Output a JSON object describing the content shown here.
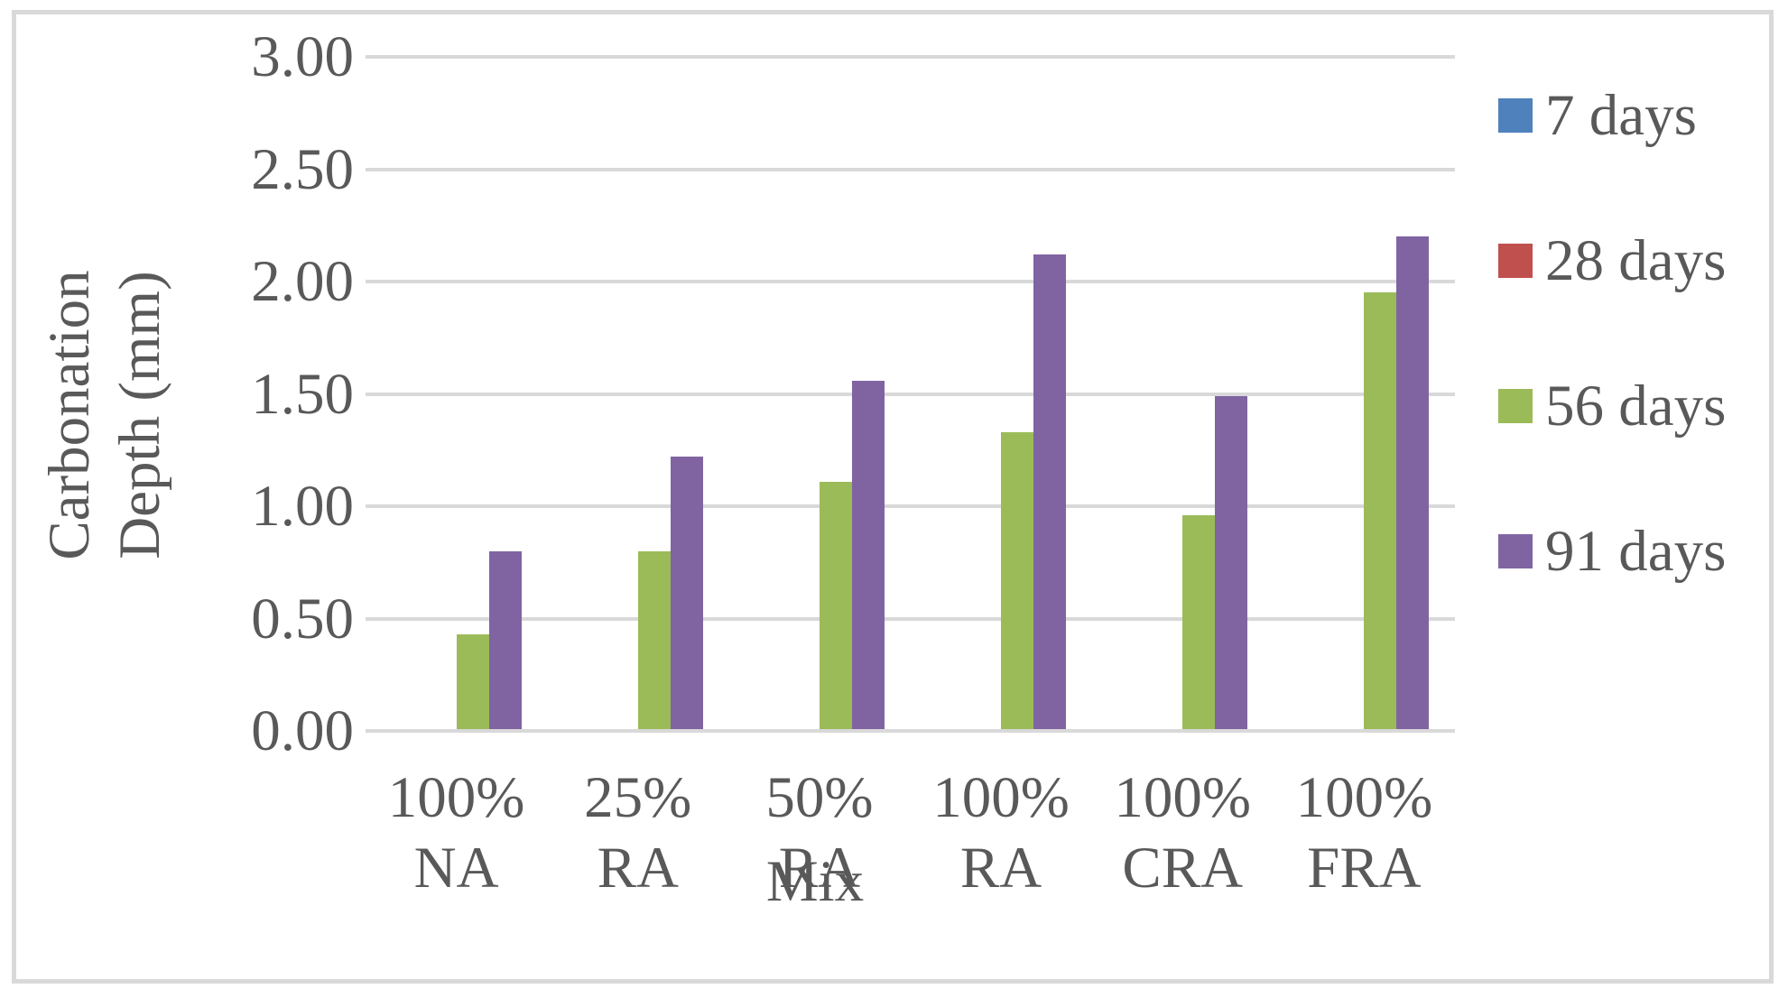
{
  "chart_data": {
    "type": "bar",
    "title": "",
    "xlabel": "Mix",
    "ylabel": "Carbonation Depth (mm)",
    "ylabel_lines": [
      "Carbonation",
      "Depth (mm)"
    ],
    "categories": [
      "100% NA",
      "25% RA",
      "50% RA",
      "100% RA",
      "100% CRA",
      "100% FRA"
    ],
    "series": [
      {
        "name": "7 days",
        "color": "#4F81BD",
        "values": [
          0,
          0,
          0,
          0,
          0,
          0
        ]
      },
      {
        "name": "28 days",
        "color": "#C0504D",
        "values": [
          0,
          0,
          0,
          0,
          0,
          0
        ]
      },
      {
        "name": "56 days",
        "color": "#9BBB59",
        "values": [
          0.43,
          0.8,
          1.11,
          1.33,
          0.96,
          1.95
        ]
      },
      {
        "name": "91 days",
        "color": "#8064A2",
        "values": [
          0.8,
          1.22,
          1.56,
          2.12,
          1.49,
          2.2
        ]
      }
    ],
    "y_axis": {
      "min": 0,
      "max": 3,
      "step": 0.5,
      "tick_labels": [
        "0.00",
        "0.50",
        "1.00",
        "1.50",
        "2.00",
        "2.50",
        "3.00"
      ]
    },
    "grid": true,
    "legend_position": "right",
    "colors": {
      "text": "#595959",
      "gridline": "#D9D9D9",
      "axis_line": "#D9D9D9",
      "chart_border": "#D9D9D9",
      "background": "#FFFFFF"
    }
  }
}
